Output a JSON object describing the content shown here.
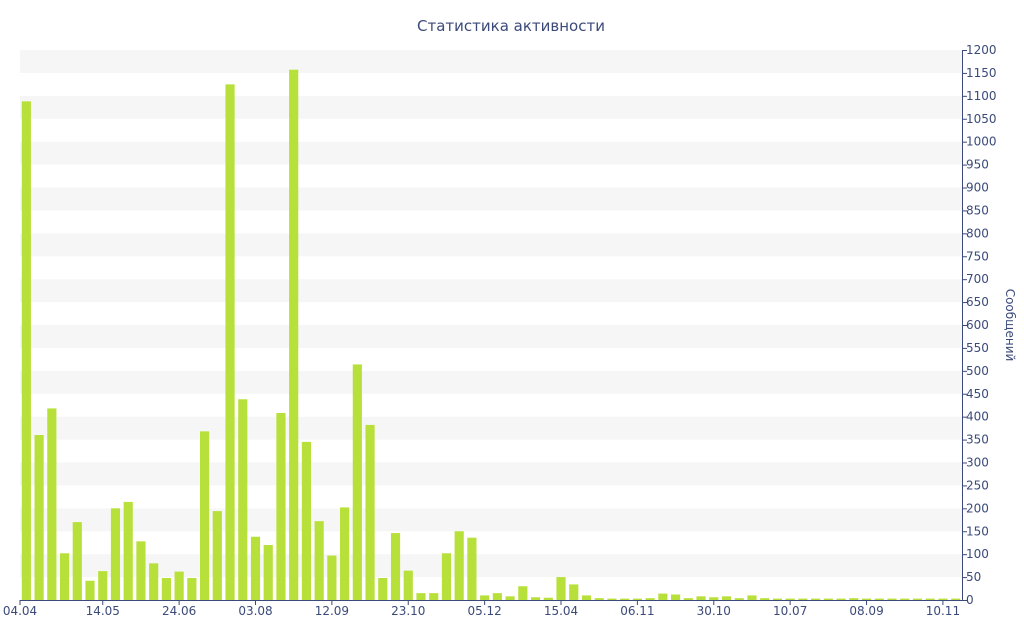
{
  "chart_data": {
    "type": "bar",
    "title": "Статистика активности",
    "ylabel": "Сообщений",
    "xlabel": "",
    "ylim": [
      0,
      1200
    ],
    "y_ticks": [
      0,
      50,
      100,
      150,
      200,
      250,
      300,
      350,
      400,
      450,
      500,
      550,
      600,
      650,
      700,
      750,
      800,
      850,
      900,
      950,
      1000,
      1050,
      1100,
      1150,
      1200
    ],
    "y_axis_side": "right",
    "x_tick_labels": [
      {
        "index": 0,
        "label": "04.04"
      },
      {
        "index": 6,
        "label": "14.05"
      },
      {
        "index": 12,
        "label": "24.06"
      },
      {
        "index": 18,
        "label": "03.08"
      },
      {
        "index": 24,
        "label": "12.09"
      },
      {
        "index": 30,
        "label": "23.10"
      },
      {
        "index": 36,
        "label": "05.12"
      },
      {
        "index": 42,
        "label": "15.04"
      },
      {
        "index": 48,
        "label": "06.11"
      },
      {
        "index": 54,
        "label": "30.10"
      },
      {
        "index": 60,
        "label": "10.07"
      },
      {
        "index": 66,
        "label": "08.09"
      },
      {
        "index": 72,
        "label": "10.11"
      }
    ],
    "values": [
      1088,
      360,
      418,
      102,
      170,
      42,
      63,
      200,
      214,
      128,
      80,
      48,
      62,
      48,
      368,
      194,
      1125,
      438,
      138,
      120,
      408,
      1157,
      345,
      172,
      97,
      202,
      514,
      382,
      48,
      146,
      64,
      15,
      15,
      102,
      150,
      136,
      10,
      15,
      8,
      30,
      6,
      5,
      50,
      34,
      10,
      4,
      3,
      3,
      3,
      4,
      14,
      12,
      4,
      8,
      6,
      8,
      4,
      10,
      4,
      3,
      3,
      3,
      3,
      3,
      3,
      4,
      3,
      3,
      3,
      3,
      3,
      3,
      3,
      3
    ],
    "bar_color": "#b8e03a",
    "band_color": "#f6f6f6",
    "text_color": "#3b4a7a",
    "grid": "alternating horizontal bands"
  }
}
